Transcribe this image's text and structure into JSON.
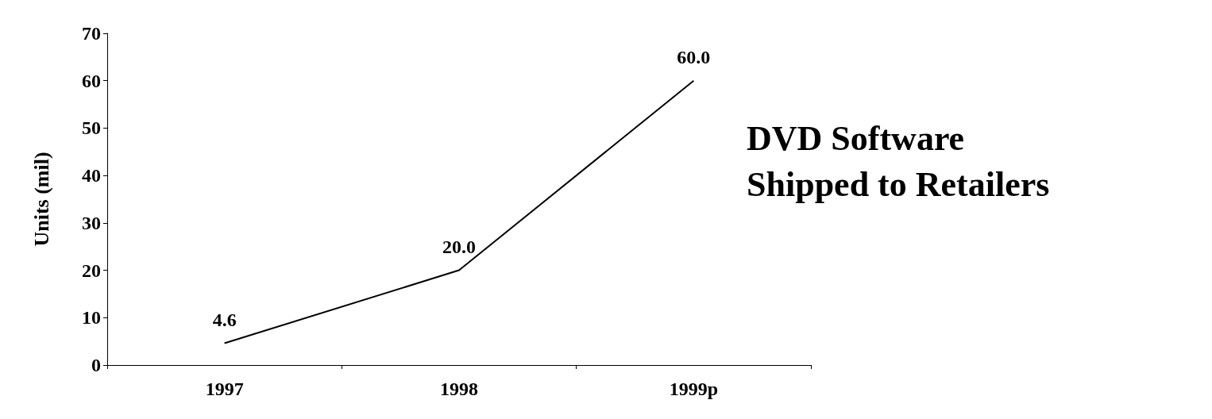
{
  "chart_data": {
    "type": "line",
    "title": "DVD Software\nShipped to Retailers",
    "ylabel": "Units (mil)",
    "categories": [
      "1997",
      "1998",
      "1999p"
    ],
    "series": [
      {
        "color": "#000000",
        "values": [
          4.6,
          20.0,
          60.0
        ],
        "value_labels": [
          "4.6",
          "20.0",
          "60.0"
        ]
      }
    ],
    "ylim": [
      0,
      70
    ],
    "yticks": [
      0,
      10,
      20,
      30,
      40,
      50,
      60,
      70
    ],
    "grid": false,
    "marker": "none",
    "line_style": "solid"
  }
}
